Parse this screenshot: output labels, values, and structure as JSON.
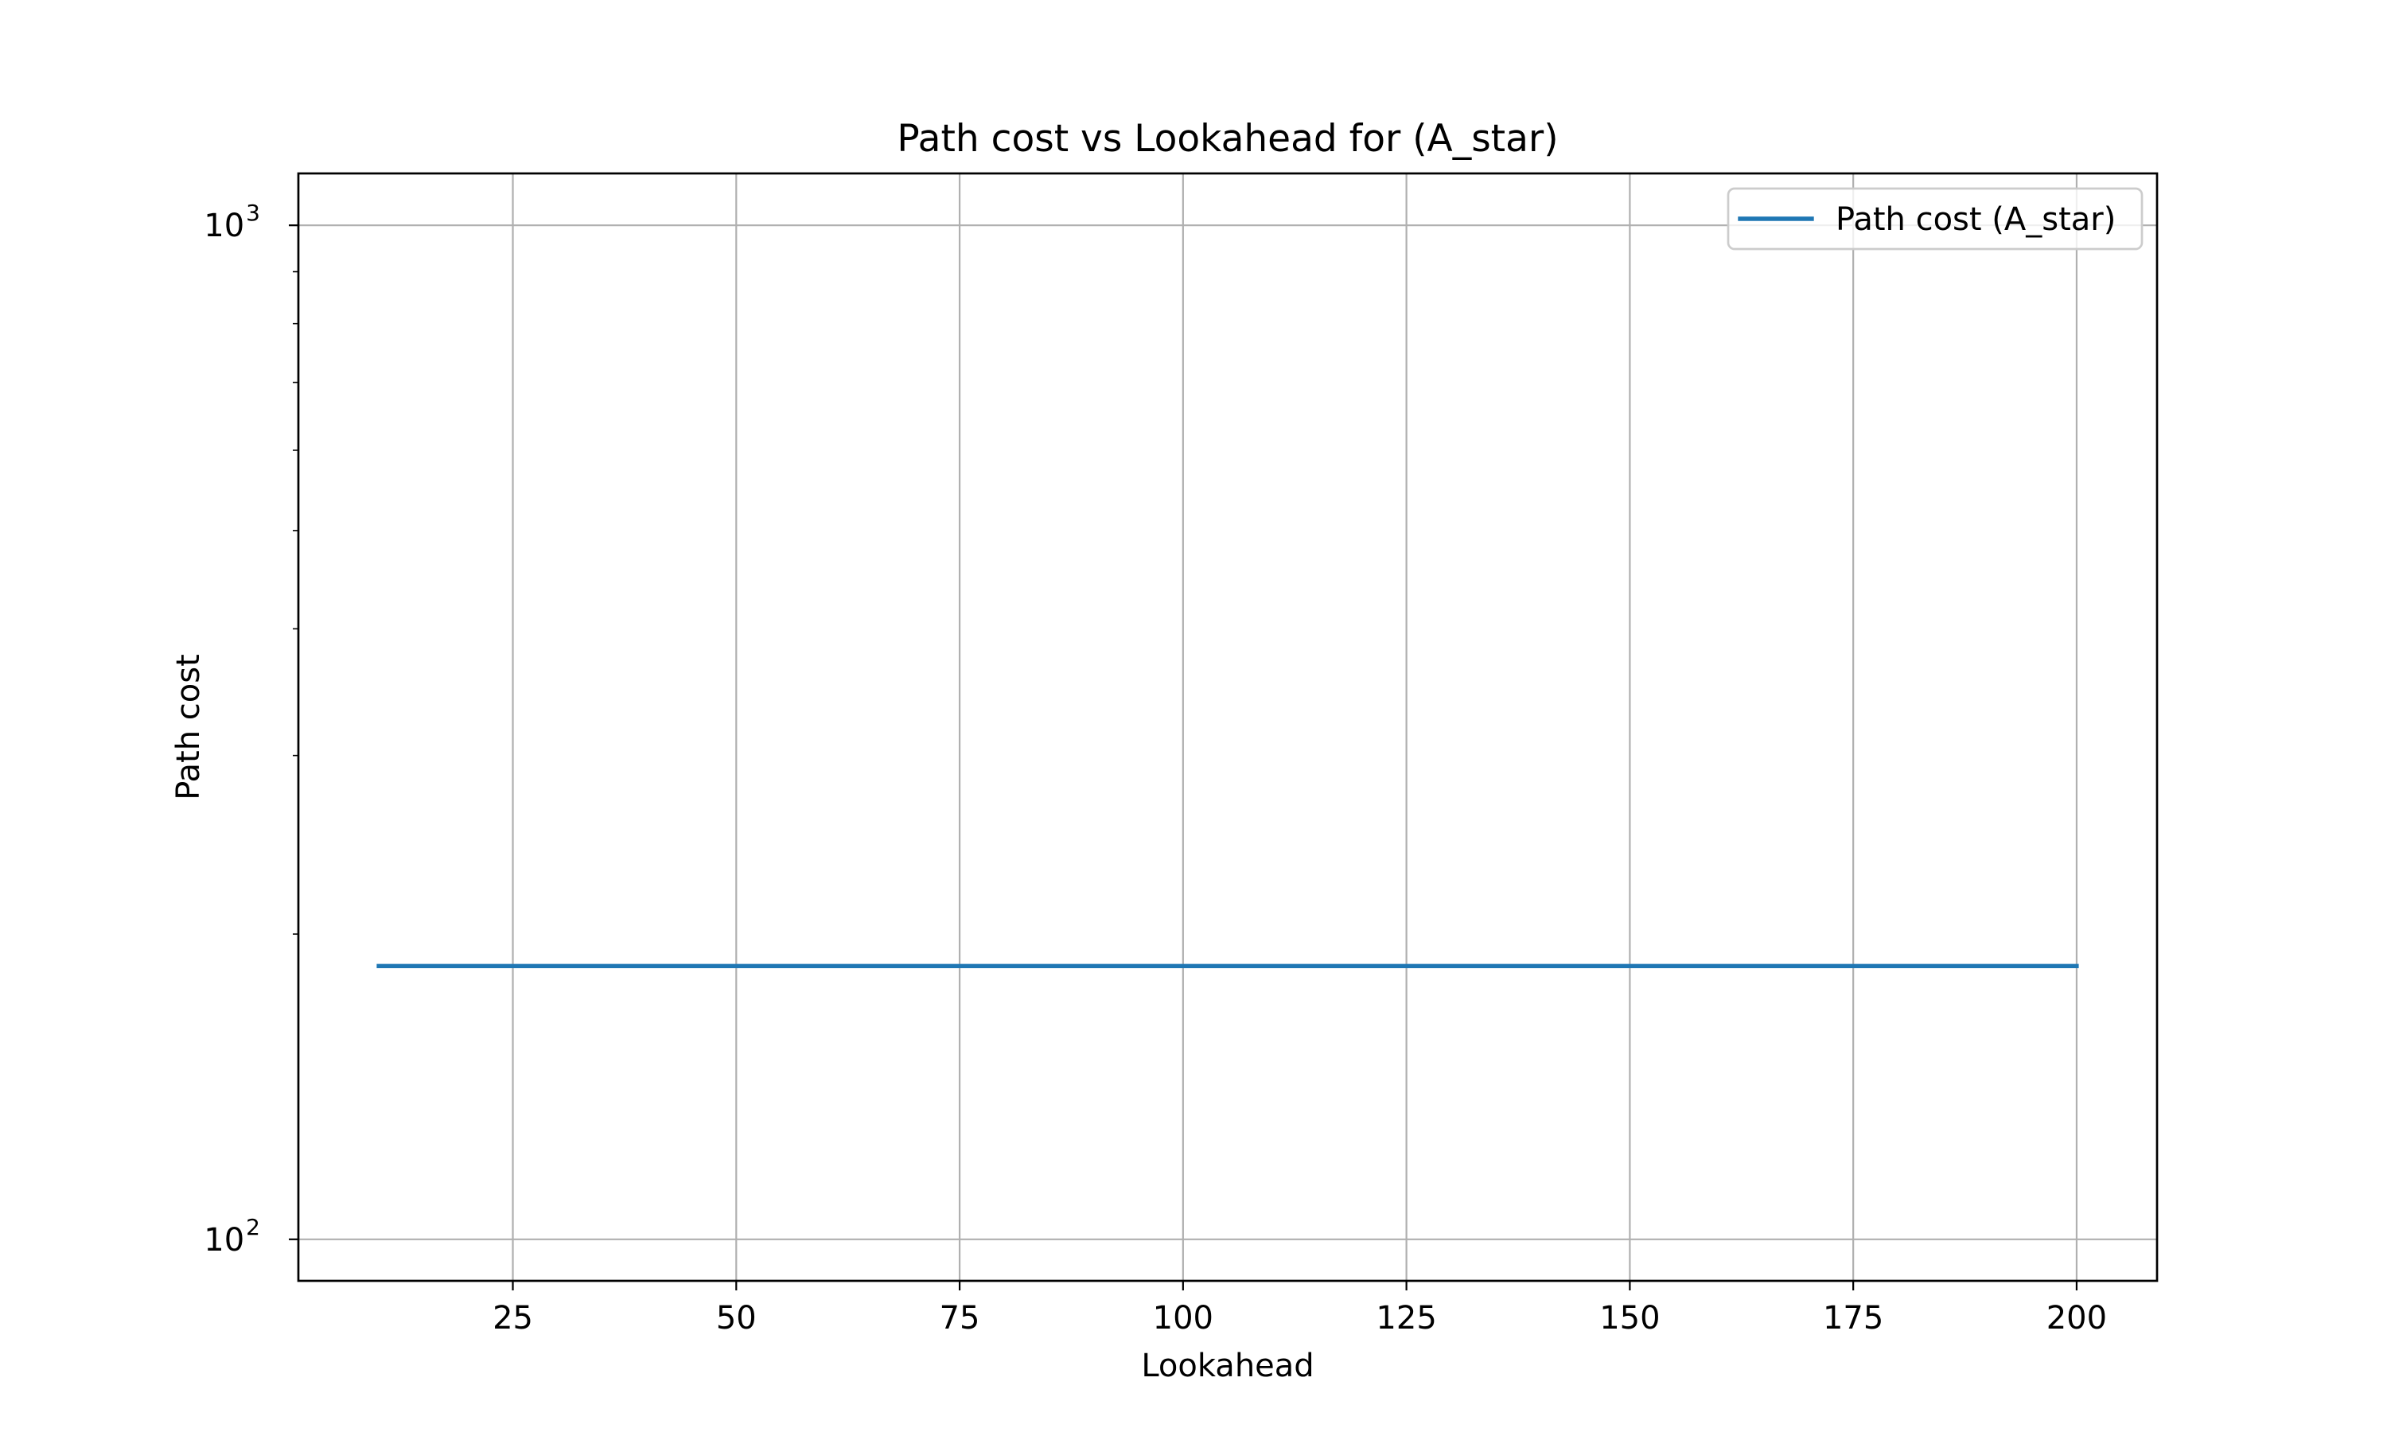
{
  "chart_data": {
    "type": "line",
    "title": "Path cost vs Lookahead for  (A_star)",
    "xlabel": "Lookahead",
    "ylabel": "Path cost",
    "xlim": [
      1,
      209
    ],
    "ylim": [
      91,
      1125
    ],
    "yscale": "log",
    "grid": true,
    "legend_position": "top-right",
    "x_ticks": [
      25,
      50,
      75,
      100,
      125,
      150,
      175,
      200
    ],
    "y_ticks": [
      {
        "value": 100,
        "base": "10",
        "exp": "2"
      },
      {
        "value": 1000,
        "base": "10",
        "exp": "3"
      }
    ],
    "series": [
      {
        "name": "Path cost (A_star)",
        "color": "#1f77b4",
        "x": [
          10,
          200
        ],
        "y": [
          186,
          186
        ]
      }
    ]
  }
}
